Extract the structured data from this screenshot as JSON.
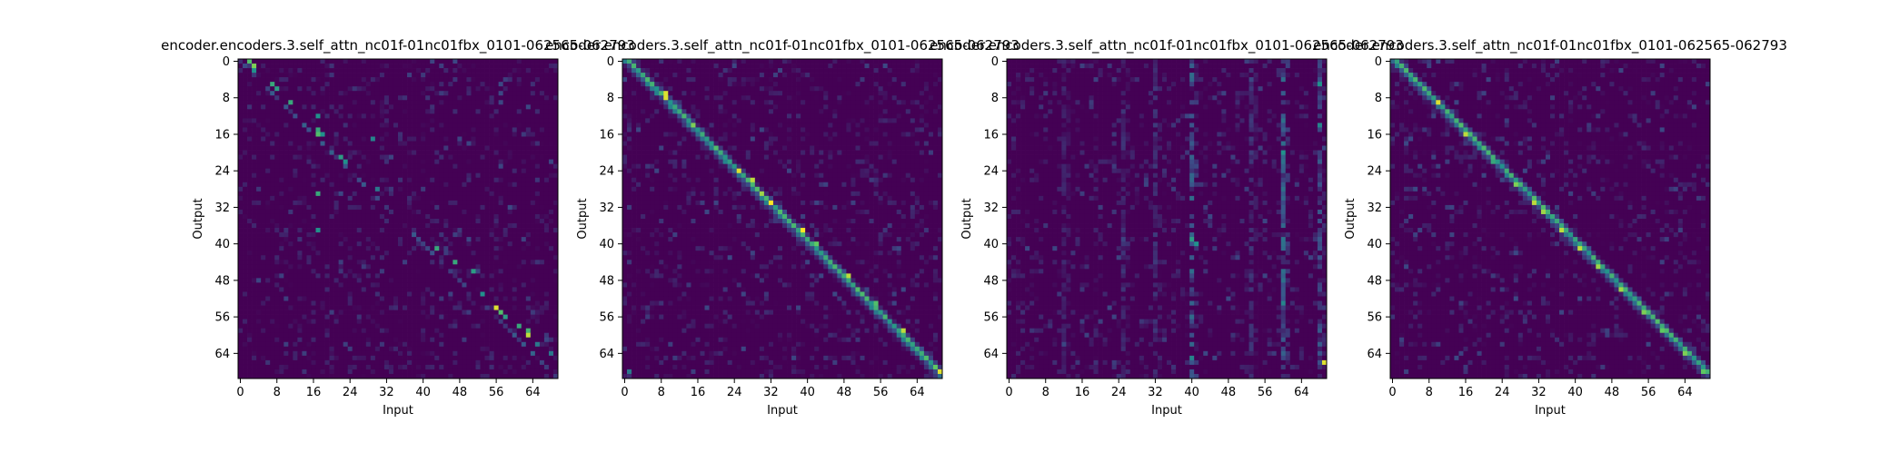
{
  "figure": {
    "background": "#ffffff",
    "colormap": "viridis",
    "colormap_colors": [
      "#440154",
      "#3b528b",
      "#21918c",
      "#5ec962",
      "#fde725"
    ]
  },
  "chart_data": [
    {
      "type": "heatmap",
      "title": "encoder.encoders.3.self_attn_nc01f-01nc01fbx_0101-062565-062793",
      "xlabel": "Input",
      "ylabel": "Output",
      "x_ticks": [
        "0",
        "8",
        "16",
        "24",
        "32",
        "40",
        "48",
        "56",
        "64"
      ],
      "y_ticks": [
        "0",
        "8",
        "16",
        "24",
        "32",
        "40",
        "48",
        "56",
        "64"
      ],
      "xlim": [
        0,
        70
      ],
      "ylim": [
        0,
        70
      ],
      "pattern": "sparse-diagonal",
      "peaks": [
        {
          "x": 2,
          "y": 0,
          "v": 0.7
        },
        {
          "x": 3,
          "y": 1,
          "v": 0.8
        },
        {
          "x": 3,
          "y": 2,
          "v": 0.5
        },
        {
          "x": 7,
          "y": 5,
          "v": 0.6
        },
        {
          "x": 8,
          "y": 6,
          "v": 0.55
        },
        {
          "x": 11,
          "y": 9,
          "v": 0.6
        },
        {
          "x": 17,
          "y": 12,
          "v": 0.5
        },
        {
          "x": 17,
          "y": 15,
          "v": 0.6
        },
        {
          "x": 17,
          "y": 16,
          "v": 0.7
        },
        {
          "x": 18,
          "y": 16,
          "v": 0.5
        },
        {
          "x": 22,
          "y": 21,
          "v": 0.55
        },
        {
          "x": 23,
          "y": 22,
          "v": 0.5
        },
        {
          "x": 29,
          "y": 17,
          "v": 0.45
        },
        {
          "x": 30,
          "y": 28,
          "v": 0.4
        },
        {
          "x": 17,
          "y": 29,
          "v": 0.6
        },
        {
          "x": 17,
          "y": 37,
          "v": 0.5
        },
        {
          "x": 43,
          "y": 41,
          "v": 0.6
        },
        {
          "x": 47,
          "y": 44,
          "v": 0.6
        },
        {
          "x": 51,
          "y": 46,
          "v": 0.55
        },
        {
          "x": 53,
          "y": 51,
          "v": 0.5
        },
        {
          "x": 56,
          "y": 54,
          "v": 0.95
        },
        {
          "x": 57,
          "y": 55,
          "v": 0.7
        },
        {
          "x": 58,
          "y": 56,
          "v": 0.55
        },
        {
          "x": 61,
          "y": 58,
          "v": 0.6
        },
        {
          "x": 63,
          "y": 59,
          "v": 0.65
        },
        {
          "x": 63,
          "y": 60,
          "v": 0.9
        },
        {
          "x": 65,
          "y": 62,
          "v": 0.4
        },
        {
          "x": 68,
          "y": 64,
          "v": 0.4
        }
      ]
    },
    {
      "type": "heatmap",
      "title": "encoder.encoders.3.self_attn_nc01f-01nc01fbx_0101-062565-062793",
      "xlabel": "Input",
      "ylabel": "Output",
      "x_ticks": [
        "0",
        "8",
        "16",
        "24",
        "32",
        "40",
        "48",
        "56",
        "64"
      ],
      "y_ticks": [
        "0",
        "8",
        "16",
        "24",
        "32",
        "40",
        "48",
        "56",
        "64"
      ],
      "xlim": [
        0,
        70
      ],
      "ylim": [
        0,
        70
      ],
      "pattern": "diagonal",
      "peaks": [
        {
          "x": 9,
          "y": 7,
          "v": 0.95
        },
        {
          "x": 9,
          "y": 8,
          "v": 0.95
        },
        {
          "x": 15,
          "y": 14,
          "v": 0.8
        },
        {
          "x": 20,
          "y": 19,
          "v": 0.7
        },
        {
          "x": 25,
          "y": 24,
          "v": 0.95
        },
        {
          "x": 28,
          "y": 26,
          "v": 0.9
        },
        {
          "x": 30,
          "y": 29,
          "v": 0.85
        },
        {
          "x": 32,
          "y": 31,
          "v": 1.0
        },
        {
          "x": 39,
          "y": 37,
          "v": 1.0
        },
        {
          "x": 42,
          "y": 40,
          "v": 0.75
        },
        {
          "x": 49,
          "y": 47,
          "v": 0.9
        },
        {
          "x": 55,
          "y": 53,
          "v": 0.7
        },
        {
          "x": 61,
          "y": 59,
          "v": 0.9
        },
        {
          "x": 68,
          "y": 67,
          "v": 0.75
        },
        {
          "x": 69,
          "y": 68,
          "v": 0.95
        },
        {
          "x": 1,
          "y": 68,
          "v": 0.4
        }
      ]
    },
    {
      "type": "heatmap",
      "title": "encoder.encoders.3.self_attn_nc01f-01nc01fbx_0101-062565-062793",
      "xlabel": "Input",
      "ylabel": "Output",
      "x_ticks": [
        "0",
        "8",
        "16",
        "24",
        "32",
        "40",
        "48",
        "56",
        "64"
      ],
      "y_ticks": [
        "0",
        "8",
        "16",
        "24",
        "32",
        "40",
        "48",
        "56",
        "64"
      ],
      "xlim": [
        0,
        70
      ],
      "ylim": [
        0,
        70
      ],
      "pattern": "column-stripes",
      "stripes": [
        {
          "x": 40,
          "v": 0.28
        },
        {
          "x": 60,
          "v": 0.3
        },
        {
          "x": 68,
          "v": 0.22
        },
        {
          "x": 25,
          "v": 0.14
        },
        {
          "x": 32,
          "v": 0.14
        },
        {
          "x": 53,
          "v": 0.14
        },
        {
          "x": 12,
          "v": 0.1
        }
      ],
      "peaks": [
        {
          "x": 40,
          "y": 39,
          "v": 0.55
        },
        {
          "x": 41,
          "y": 40,
          "v": 0.5
        },
        {
          "x": 60,
          "y": 20,
          "v": 0.5
        },
        {
          "x": 60,
          "y": 53,
          "v": 0.45
        },
        {
          "x": 68,
          "y": 5,
          "v": 0.5
        },
        {
          "x": 68,
          "y": 14,
          "v": 0.45
        },
        {
          "x": 69,
          "y": 66,
          "v": 0.95
        },
        {
          "x": 40,
          "y": 65,
          "v": 0.45
        }
      ]
    },
    {
      "type": "heatmap",
      "title": "encoder.encoders.3.self_attn_nc01f-01nc01fbx_0101-062565-062793",
      "xlabel": "Input",
      "ylabel": "Output",
      "x_ticks": [
        "0",
        "8",
        "16",
        "24",
        "32",
        "40",
        "48",
        "56",
        "64"
      ],
      "y_ticks": [
        "0",
        "8",
        "16",
        "24",
        "32",
        "40",
        "48",
        "56",
        "64"
      ],
      "xlim": [
        0,
        70
      ],
      "ylim": [
        0,
        70
      ],
      "pattern": "diagonal",
      "peaks": [
        {
          "x": 10,
          "y": 9,
          "v": 0.95
        },
        {
          "x": 16,
          "y": 16,
          "v": 0.9
        },
        {
          "x": 22,
          "y": 22,
          "v": 0.6
        },
        {
          "x": 27,
          "y": 27,
          "v": 0.8
        },
        {
          "x": 31,
          "y": 31,
          "v": 0.9
        },
        {
          "x": 33,
          "y": 33,
          "v": 0.85
        },
        {
          "x": 37,
          "y": 37,
          "v": 0.9
        },
        {
          "x": 41,
          "y": 41,
          "v": 0.9
        },
        {
          "x": 45,
          "y": 45,
          "v": 0.85
        },
        {
          "x": 50,
          "y": 50,
          "v": 0.85
        },
        {
          "x": 55,
          "y": 55,
          "v": 0.8
        },
        {
          "x": 59,
          "y": 59,
          "v": 0.75
        },
        {
          "x": 64,
          "y": 64,
          "v": 0.8
        },
        {
          "x": 68,
          "y": 68,
          "v": 0.75
        }
      ]
    }
  ]
}
